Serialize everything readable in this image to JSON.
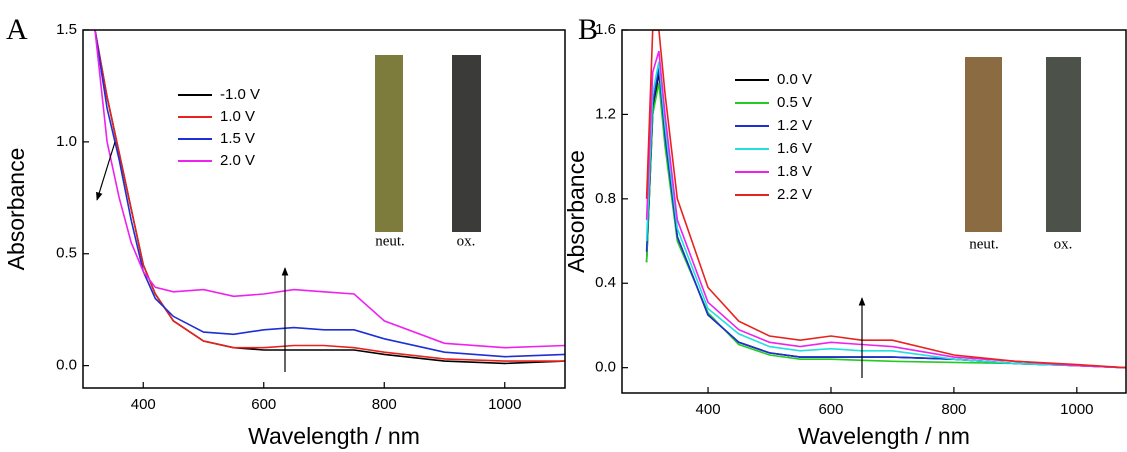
{
  "chart_data": [
    {
      "type": "line",
      "panel_label": "A",
      "xlabel": "Wavelength / nm",
      "ylabel": "Absorbance",
      "x": [
        320,
        340,
        360,
        380,
        400,
        420,
        450,
        500,
        550,
        600,
        650,
        700,
        750,
        800,
        900,
        1000,
        1100
      ],
      "xlim": [
        300,
        1100
      ],
      "xticks": [
        400,
        600,
        800,
        1000
      ],
      "ylim": [
        -0.1,
        1.5
      ],
      "yticks": [
        {
          "value": 0,
          "label": "0.0"
        },
        0.5,
        {
          "value": 1,
          "label": "1.0"
        },
        1.5
      ],
      "series": [
        {
          "name": "-1.0 V",
          "color": "#000000",
          "values": [
            1.5,
            1.2,
            0.95,
            0.7,
            0.45,
            0.32,
            0.2,
            0.11,
            0.08,
            0.07,
            0.07,
            0.07,
            0.07,
            0.05,
            0.02,
            0.01,
            0.02
          ]
        },
        {
          "name": "1.0 V",
          "color": "#e8231e",
          "values": [
            1.5,
            1.2,
            0.95,
            0.7,
            0.45,
            0.32,
            0.2,
            0.11,
            0.08,
            0.08,
            0.09,
            0.09,
            0.08,
            0.06,
            0.03,
            0.02,
            0.02
          ]
        },
        {
          "name": "1.5 V",
          "color": "#1f2fd6",
          "values": [
            1.5,
            1.15,
            0.92,
            0.65,
            0.42,
            0.3,
            0.22,
            0.15,
            0.14,
            0.16,
            0.17,
            0.16,
            0.16,
            0.12,
            0.06,
            0.04,
            0.05
          ]
        },
        {
          "name": "2.0 V",
          "color": "#ee22ee",
          "values": [
            1.5,
            1.0,
            0.75,
            0.55,
            0.42,
            0.35,
            0.33,
            0.34,
            0.31,
            0.32,
            0.34,
            0.33,
            0.32,
            0.2,
            0.1,
            0.08,
            0.09
          ]
        }
      ],
      "annotations": [
        "neut.",
        "ox."
      ]
    },
    {
      "type": "line",
      "panel_label": "B",
      "xlabel": "Wavelength / nm",
      "ylabel": "Absorbance",
      "x": [
        300,
        310,
        320,
        330,
        350,
        400,
        450,
        500,
        550,
        600,
        650,
        700,
        800,
        900,
        1000,
        1080
      ],
      "xlim": [
        260,
        1080
      ],
      "xticks": [
        400,
        600,
        800,
        1000
      ],
      "ylim": [
        -0.12,
        1.6
      ],
      "yticks": [
        {
          "value": 0,
          "label": "0.0"
        },
        0.4,
        0.8,
        1.2,
        1.6
      ],
      "series": [
        {
          "name": "0.0 V",
          "color": "#000000",
          "values": [
            0.5,
            1.2,
            1.4,
            1.1,
            0.62,
            0.25,
            0.12,
            0.07,
            0.05,
            0.05,
            0.05,
            0.05,
            0.04,
            0.02,
            0.01,
            0.0
          ]
        },
        {
          "name": "0.5 V",
          "color": "#22cc22",
          "values": [
            0.5,
            1.2,
            1.35,
            1.05,
            0.6,
            0.26,
            0.11,
            0.06,
            0.04,
            0.04,
            0.035,
            0.03,
            0.025,
            0.02,
            0.01,
            0.0
          ]
        },
        {
          "name": "1.2 V",
          "color": "#1f2fd6",
          "values": [
            0.55,
            1.25,
            1.42,
            1.1,
            0.62,
            0.25,
            0.12,
            0.07,
            0.05,
            0.05,
            0.05,
            0.05,
            0.04,
            0.02,
            0.01,
            0.0
          ]
        },
        {
          "name": "1.6 V",
          "color": "#22e0e0",
          "values": [
            0.6,
            1.3,
            1.45,
            1.15,
            0.66,
            0.28,
            0.16,
            0.1,
            0.08,
            0.09,
            0.08,
            0.08,
            0.04,
            0.02,
            0.01,
            0.0
          ]
        },
        {
          "name": "1.8 V",
          "color": "#ee22ee",
          "values": [
            0.7,
            1.4,
            1.5,
            1.2,
            0.7,
            0.31,
            0.18,
            0.12,
            0.1,
            0.12,
            0.11,
            0.1,
            0.05,
            0.03,
            0.01,
            0.0
          ]
        },
        {
          "name": "2.2 V",
          "color": "#e8231e",
          "values": [
            0.8,
            1.6,
            1.6,
            1.3,
            0.8,
            0.38,
            0.22,
            0.15,
            0.13,
            0.15,
            0.13,
            0.13,
            0.06,
            0.03,
            0.015,
            0.0
          ]
        }
      ],
      "annotations": [
        "neut.",
        "ox."
      ]
    }
  ]
}
